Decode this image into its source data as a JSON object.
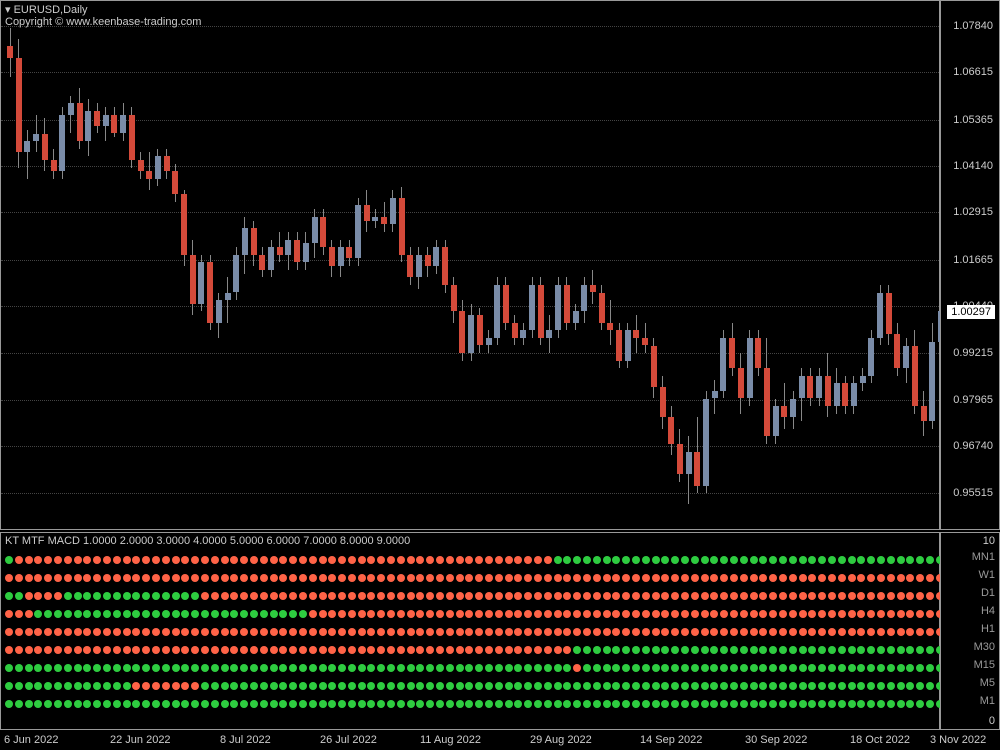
{
  "header": {
    "symbol": "EURUSD,Daily",
    "copyright": "Copyright © www.keenbase-trading.com"
  },
  "chart": {
    "ylim": [
      0.945,
      1.085
    ],
    "price_labels": [
      1.0784,
      1.06615,
      1.05365,
      1.0414,
      1.02915,
      1.01665,
      1.0044,
      0.99215,
      0.97965,
      0.9674,
      0.95515
    ],
    "current_price": 1.00297,
    "bull_color": "#7a8ca8",
    "bear_color": "#d44a3a",
    "wick_color": "#888888",
    "grid_color": "#444444",
    "background": "#000000",
    "text_color": "#cccccc",
    "candles": [
      {
        "o": 1.073,
        "h": 1.078,
        "l": 1.065,
        "c": 1.07,
        "t": "bear"
      },
      {
        "o": 1.07,
        "h": 1.075,
        "l": 1.041,
        "c": 1.045,
        "t": "bear"
      },
      {
        "o": 1.045,
        "h": 1.051,
        "l": 1.038,
        "c": 1.048,
        "t": "bull"
      },
      {
        "o": 1.048,
        "h": 1.055,
        "l": 1.045,
        "c": 1.05,
        "t": "bull"
      },
      {
        "o": 1.05,
        "h": 1.054,
        "l": 1.04,
        "c": 1.043,
        "t": "bear"
      },
      {
        "o": 1.043,
        "h": 1.046,
        "l": 1.038,
        "c": 1.04,
        "t": "bear"
      },
      {
        "o": 1.04,
        "h": 1.057,
        "l": 1.038,
        "c": 1.055,
        "t": "bull"
      },
      {
        "o": 1.055,
        "h": 1.06,
        "l": 1.05,
        "c": 1.058,
        "t": "bull"
      },
      {
        "o": 1.058,
        "h": 1.062,
        "l": 1.046,
        "c": 1.048,
        "t": "bear"
      },
      {
        "o": 1.048,
        "h": 1.059,
        "l": 1.044,
        "c": 1.056,
        "t": "bull"
      },
      {
        "o": 1.056,
        "h": 1.058,
        "l": 1.05,
        "c": 1.052,
        "t": "bear"
      },
      {
        "o": 1.052,
        "h": 1.057,
        "l": 1.048,
        "c": 1.055,
        "t": "bull"
      },
      {
        "o": 1.055,
        "h": 1.057,
        "l": 1.049,
        "c": 1.05,
        "t": "bear"
      },
      {
        "o": 1.05,
        "h": 1.058,
        "l": 1.048,
        "c": 1.055,
        "t": "bull"
      },
      {
        "o": 1.055,
        "h": 1.057,
        "l": 1.041,
        "c": 1.043,
        "t": "bear"
      },
      {
        "o": 1.043,
        "h": 1.045,
        "l": 1.038,
        "c": 1.04,
        "t": "bear"
      },
      {
        "o": 1.04,
        "h": 1.045,
        "l": 1.035,
        "c": 1.038,
        "t": "bear"
      },
      {
        "o": 1.038,
        "h": 1.046,
        "l": 1.036,
        "c": 1.044,
        "t": "bull"
      },
      {
        "o": 1.044,
        "h": 1.046,
        "l": 1.038,
        "c": 1.04,
        "t": "bear"
      },
      {
        "o": 1.04,
        "h": 1.042,
        "l": 1.032,
        "c": 1.034,
        "t": "bear"
      },
      {
        "o": 1.034,
        "h": 1.035,
        "l": 1.015,
        "c": 1.018,
        "t": "bear"
      },
      {
        "o": 1.018,
        "h": 1.022,
        "l": 1.002,
        "c": 1.005,
        "t": "bear"
      },
      {
        "o": 1.005,
        "h": 1.018,
        "l": 1.003,
        "c": 1.016,
        "t": "bull"
      },
      {
        "o": 1.016,
        "h": 1.018,
        "l": 0.998,
        "c": 1.0,
        "t": "bear"
      },
      {
        "o": 1.0,
        "h": 1.008,
        "l": 0.996,
        "c": 1.006,
        "t": "bull"
      },
      {
        "o": 1.006,
        "h": 1.012,
        "l": 1.0,
        "c": 1.008,
        "t": "bull"
      },
      {
        "o": 1.008,
        "h": 1.02,
        "l": 1.006,
        "c": 1.018,
        "t": "bull"
      },
      {
        "o": 1.018,
        "h": 1.028,
        "l": 1.013,
        "c": 1.025,
        "t": "bull"
      },
      {
        "o": 1.025,
        "h": 1.027,
        "l": 1.015,
        "c": 1.018,
        "t": "bear"
      },
      {
        "o": 1.018,
        "h": 1.02,
        "l": 1.012,
        "c": 1.014,
        "t": "bear"
      },
      {
        "o": 1.014,
        "h": 1.022,
        "l": 1.012,
        "c": 1.02,
        "t": "bull"
      },
      {
        "o": 1.02,
        "h": 1.024,
        "l": 1.016,
        "c": 1.018,
        "t": "bear"
      },
      {
        "o": 1.018,
        "h": 1.024,
        "l": 1.014,
        "c": 1.022,
        "t": "bull"
      },
      {
        "o": 1.022,
        "h": 1.024,
        "l": 1.014,
        "c": 1.016,
        "t": "bear"
      },
      {
        "o": 1.016,
        "h": 1.024,
        "l": 1.014,
        "c": 1.021,
        "t": "bull"
      },
      {
        "o": 1.021,
        "h": 1.03,
        "l": 1.017,
        "c": 1.028,
        "t": "bull"
      },
      {
        "o": 1.028,
        "h": 1.03,
        "l": 1.018,
        "c": 1.02,
        "t": "bear"
      },
      {
        "o": 1.02,
        "h": 1.022,
        "l": 1.012,
        "c": 1.015,
        "t": "bear"
      },
      {
        "o": 1.015,
        "h": 1.022,
        "l": 1.012,
        "c": 1.02,
        "t": "bull"
      },
      {
        "o": 1.02,
        "h": 1.022,
        "l": 1.015,
        "c": 1.017,
        "t": "bear"
      },
      {
        "o": 1.017,
        "h": 1.033,
        "l": 1.015,
        "c": 1.031,
        "t": "bull"
      },
      {
        "o": 1.031,
        "h": 1.035,
        "l": 1.024,
        "c": 1.027,
        "t": "bear"
      },
      {
        "o": 1.027,
        "h": 1.03,
        "l": 1.025,
        "c": 1.028,
        "t": "bull"
      },
      {
        "o": 1.028,
        "h": 1.032,
        "l": 1.024,
        "c": 1.026,
        "t": "bear"
      },
      {
        "o": 1.026,
        "h": 1.035,
        "l": 1.024,
        "c": 1.033,
        "t": "bull"
      },
      {
        "o": 1.033,
        "h": 1.036,
        "l": 1.016,
        "c": 1.018,
        "t": "bear"
      },
      {
        "o": 1.018,
        "h": 1.02,
        "l": 1.01,
        "c": 1.012,
        "t": "bear"
      },
      {
        "o": 1.012,
        "h": 1.02,
        "l": 1.009,
        "c": 1.018,
        "t": "bull"
      },
      {
        "o": 1.018,
        "h": 1.02,
        "l": 1.012,
        "c": 1.015,
        "t": "bear"
      },
      {
        "o": 1.015,
        "h": 1.022,
        "l": 1.013,
        "c": 1.02,
        "t": "bull"
      },
      {
        "o": 1.02,
        "h": 1.022,
        "l": 1.008,
        "c": 1.01,
        "t": "bear"
      },
      {
        "o": 1.01,
        "h": 1.012,
        "l": 1.0,
        "c": 1.003,
        "t": "bear"
      },
      {
        "o": 1.003,
        "h": 1.006,
        "l": 0.99,
        "c": 0.992,
        "t": "bear"
      },
      {
        "o": 0.992,
        "h": 1.005,
        "l": 0.99,
        "c": 1.002,
        "t": "bull"
      },
      {
        "o": 1.002,
        "h": 1.004,
        "l": 0.992,
        "c": 0.994,
        "t": "bear"
      },
      {
        "o": 0.994,
        "h": 0.998,
        "l": 0.992,
        "c": 0.996,
        "t": "bull"
      },
      {
        "o": 0.996,
        "h": 1.012,
        "l": 0.994,
        "c": 1.01,
        "t": "bull"
      },
      {
        "o": 1.01,
        "h": 1.012,
        "l": 0.998,
        "c": 1.0,
        "t": "bear"
      },
      {
        "o": 1.0,
        "h": 1.002,
        "l": 0.994,
        "c": 0.996,
        "t": "bear"
      },
      {
        "o": 0.996,
        "h": 1.0,
        "l": 0.994,
        "c": 0.998,
        "t": "bull"
      },
      {
        "o": 0.998,
        "h": 1.012,
        "l": 0.996,
        "c": 1.01,
        "t": "bull"
      },
      {
        "o": 1.01,
        "h": 1.012,
        "l": 0.994,
        "c": 0.996,
        "t": "bear"
      },
      {
        "o": 0.996,
        "h": 1.002,
        "l": 0.992,
        "c": 0.998,
        "t": "bull"
      },
      {
        "o": 0.998,
        "h": 1.012,
        "l": 0.996,
        "c": 1.01,
        "t": "bull"
      },
      {
        "o": 1.01,
        "h": 1.012,
        "l": 0.998,
        "c": 1.0,
        "t": "bear"
      },
      {
        "o": 1.0,
        "h": 1.005,
        "l": 0.998,
        "c": 1.003,
        "t": "bull"
      },
      {
        "o": 1.003,
        "h": 1.012,
        "l": 1.0,
        "c": 1.01,
        "t": "bull"
      },
      {
        "o": 1.01,
        "h": 1.014,
        "l": 1.005,
        "c": 1.008,
        "t": "bear"
      },
      {
        "o": 1.008,
        "h": 1.01,
        "l": 0.998,
        "c": 1.0,
        "t": "bear"
      },
      {
        "o": 1.0,
        "h": 1.006,
        "l": 0.994,
        "c": 0.998,
        "t": "bear"
      },
      {
        "o": 0.998,
        "h": 1.0,
        "l": 0.988,
        "c": 0.99,
        "t": "bear"
      },
      {
        "o": 0.99,
        "h": 1.0,
        "l": 0.988,
        "c": 0.998,
        "t": "bull"
      },
      {
        "o": 0.998,
        "h": 1.002,
        "l": 0.992,
        "c": 0.996,
        "t": "bear"
      },
      {
        "o": 0.996,
        "h": 1.0,
        "l": 0.992,
        "c": 0.994,
        "t": "bear"
      },
      {
        "o": 0.994,
        "h": 0.996,
        "l": 0.98,
        "c": 0.983,
        "t": "bear"
      },
      {
        "o": 0.983,
        "h": 0.986,
        "l": 0.972,
        "c": 0.975,
        "t": "bear"
      },
      {
        "o": 0.975,
        "h": 0.978,
        "l": 0.965,
        "c": 0.968,
        "t": "bear"
      },
      {
        "o": 0.968,
        "h": 0.972,
        "l": 0.958,
        "c": 0.96,
        "t": "bear"
      },
      {
        "o": 0.96,
        "h": 0.97,
        "l": 0.952,
        "c": 0.966,
        "t": "bull"
      },
      {
        "o": 0.966,
        "h": 0.975,
        "l": 0.955,
        "c": 0.957,
        "t": "bear"
      },
      {
        "o": 0.957,
        "h": 0.982,
        "l": 0.955,
        "c": 0.98,
        "t": "bull"
      },
      {
        "o": 0.98,
        "h": 0.985,
        "l": 0.976,
        "c": 0.982,
        "t": "bull"
      },
      {
        "o": 0.982,
        "h": 0.998,
        "l": 0.98,
        "c": 0.996,
        "t": "bull"
      },
      {
        "o": 0.996,
        "h": 1.0,
        "l": 0.986,
        "c": 0.988,
        "t": "bear"
      },
      {
        "o": 0.988,
        "h": 0.992,
        "l": 0.976,
        "c": 0.98,
        "t": "bear"
      },
      {
        "o": 0.98,
        "h": 0.998,
        "l": 0.978,
        "c": 0.996,
        "t": "bull"
      },
      {
        "o": 0.996,
        "h": 0.998,
        "l": 0.986,
        "c": 0.988,
        "t": "bear"
      },
      {
        "o": 0.988,
        "h": 0.996,
        "l": 0.968,
        "c": 0.97,
        "t": "bear"
      },
      {
        "o": 0.97,
        "h": 0.98,
        "l": 0.968,
        "c": 0.978,
        "t": "bull"
      },
      {
        "o": 0.978,
        "h": 0.984,
        "l": 0.972,
        "c": 0.975,
        "t": "bear"
      },
      {
        "o": 0.975,
        "h": 0.982,
        "l": 0.972,
        "c": 0.98,
        "t": "bull"
      },
      {
        "o": 0.98,
        "h": 0.988,
        "l": 0.974,
        "c": 0.986,
        "t": "bull"
      },
      {
        "o": 0.986,
        "h": 0.988,
        "l": 0.978,
        "c": 0.98,
        "t": "bear"
      },
      {
        "o": 0.98,
        "h": 0.988,
        "l": 0.978,
        "c": 0.986,
        "t": "bull"
      },
      {
        "o": 0.986,
        "h": 0.992,
        "l": 0.975,
        "c": 0.978,
        "t": "bear"
      },
      {
        "o": 0.978,
        "h": 0.988,
        "l": 0.976,
        "c": 0.984,
        "t": "bull"
      },
      {
        "o": 0.984,
        "h": 0.986,
        "l": 0.976,
        "c": 0.978,
        "t": "bear"
      },
      {
        "o": 0.978,
        "h": 0.986,
        "l": 0.976,
        "c": 0.984,
        "t": "bull"
      },
      {
        "o": 0.984,
        "h": 0.988,
        "l": 0.982,
        "c": 0.986,
        "t": "bull"
      },
      {
        "o": 0.986,
        "h": 0.998,
        "l": 0.984,
        "c": 0.996,
        "t": "bull"
      },
      {
        "o": 0.996,
        "h": 1.01,
        "l": 0.994,
        "c": 1.008,
        "t": "bull"
      },
      {
        "o": 1.008,
        "h": 1.01,
        "l": 0.994,
        "c": 0.997,
        "t": "bear"
      },
      {
        "o": 0.997,
        "h": 1.0,
        "l": 0.986,
        "c": 0.988,
        "t": "bear"
      },
      {
        "o": 0.988,
        "h": 0.996,
        "l": 0.984,
        "c": 0.994,
        "t": "bull"
      },
      {
        "o": 0.994,
        "h": 0.998,
        "l": 0.976,
        "c": 0.978,
        "t": "bear"
      },
      {
        "o": 0.978,
        "h": 0.982,
        "l": 0.97,
        "c": 0.974,
        "t": "bear"
      },
      {
        "o": 0.974,
        "h": 1.0,
        "l": 0.972,
        "c": 0.995,
        "t": "bull"
      },
      {
        "o": 0.995,
        "h": 1.003,
        "l": 0.993,
        "c": 1.003,
        "t": "bull"
      }
    ]
  },
  "dates": [
    "6 Jun 2022",
    "22 Jun 2022",
    "8 Jul 2022",
    "26 Jul 2022",
    "11 Aug 2022",
    "29 Aug 2022",
    "14 Sep 2022",
    "30 Sep 2022",
    "18 Oct 2022",
    "3 Nov 2022"
  ],
  "indicator": {
    "name": "KT MTF MACD",
    "values_label": "1.0000 2.0000 3.0000 4.0000 5.0000 6.0000 7.0000 8.0000 9.0000",
    "scale_top": "10",
    "scale_bottom": "0",
    "green": "#2ecc40",
    "red": "#ff6347",
    "timeframes": [
      {
        "label": "MN1",
        "pattern": "GRRRRRRRRRRRRRRRRRRRRRRRRRRRRRRRRRRRRRRRRRRRRRRRRRRRRRRRGGGGGGGGGGGGGGGGGGGGGGGGGGGGGGGGGGGGGGGGRRRRRR"
      },
      {
        "label": "W1",
        "pattern": "RRRRRRRRRRRRRRRRRRRRRRRRRRRRRRRRRRRRRRRRRRRRRRRRRRRRRRRRRRRRRRRRRRRRRRRRRRRRRRRRRRRRRRRRRRRRRRRRRRRRRR"
      },
      {
        "label": "D1",
        "pattern": "GGRRRRGGGGGGGGGGGGGGRRRRRRRRRRRRRRRRRRRRRRRRRRRRRRRRRRRRRRRRRRRRRRRRRRRRRRRRRRRRRRRRRRRRRRRRRRRRRGGGGG"
      },
      {
        "label": "H4",
        "pattern": "RRRGGGGGGGGGGGGGGGGGGGGGGGGGGGGRRRRRRRRRRRRRRRRRRRRRRRRRRRRRRRRRRRRRRRRRRRRRRRRRRRRRRRRRRRRRRRRRRRRRRG"
      },
      {
        "label": "H1",
        "pattern": "RRRRRRRRRRRRRRRRRRRRRRRRRRRRRRRRRRRRRRRRRRRRRRRRRRRRRRRRRRRRRRRRRRRRRRRRRRRRRRRRRRRRRRRRRRRRRRRRRRGGGG"
      },
      {
        "label": "M30",
        "pattern": "RRRRRRRRRRRRRRRRRRRRRRRRRRRRRRRRRRRRRRRRRRRRRRRRRRRRRRRRRRGGGGGGGGGGGGGGGGGGGGGGGGGGGGGGGGGGGGGGGGGGGG"
      },
      {
        "label": "M15",
        "pattern": "GGGGGGGGGGGGGGGGGGGGGGGGGGGGGGGGGGGGGGGGGGGGGGGGGGGGGGGGGGRGGGGGGGGGGGGGGGGGGGGGGGGGGGGGGGGGGGGGGGGGGG"
      },
      {
        "label": "M5",
        "pattern": "GGGGGGGGGGGGGRRRRRRRGGGGGGGGGGGGGGGGGGGGGGGGGGGGGGGGGGGGGGGGGGGGGGGGGGGGGGGGGGGGGGGGGGGGGGGGGGGGGGGGGG"
      },
      {
        "label": "M1",
        "pattern": "GGGGGGGGGGGGGGGGGGGGGGGGGGGGGGGGGGGGGGGGGGGGGGGGGGGGGGGGGGGGGGGGGGGGGGGGGGGGGGGGGGGGGGGGGGGGGGGGGGGGGG"
      }
    ]
  }
}
